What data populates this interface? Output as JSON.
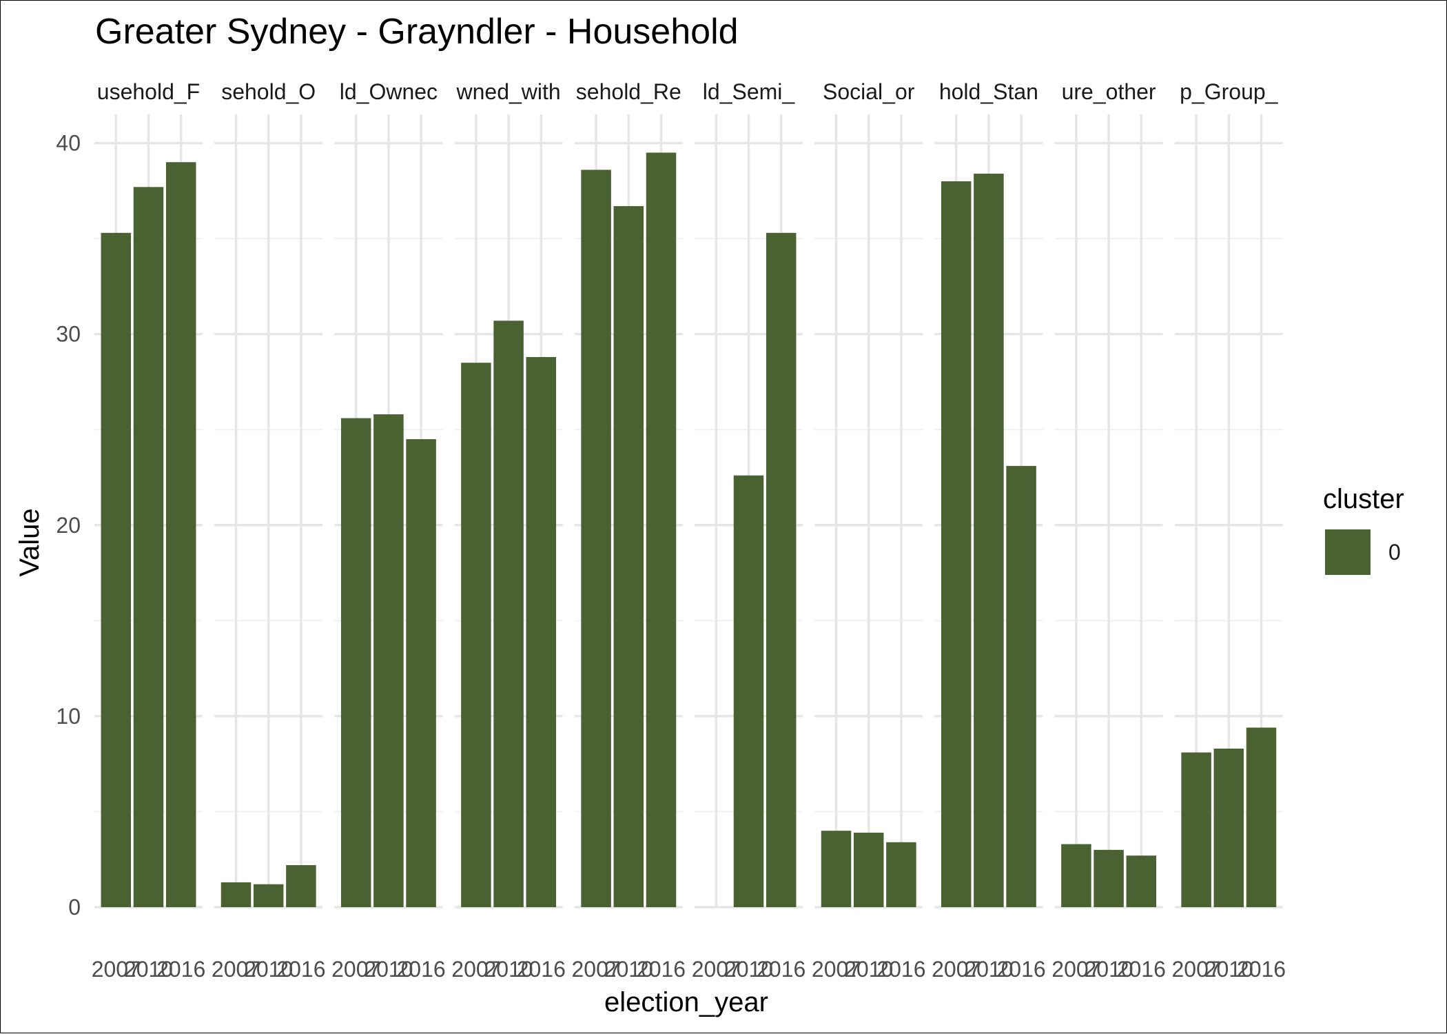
{
  "chart_data": {
    "type": "bar",
    "title": "Greater Sydney - Grayndler - Household",
    "xlabel": "election_year",
    "ylabel": "Value",
    "ylim": [
      0,
      41.5
    ],
    "yticks": [
      0,
      10,
      20,
      30,
      40
    ],
    "categories": [
      "2007",
      "2010",
      "2016"
    ],
    "bar_color": "#4a6132",
    "grid": true,
    "legend": {
      "title": "cluster",
      "position": "right",
      "entries": [
        {
          "label": "0",
          "color": "#4a6132"
        }
      ]
    },
    "facets": [
      {
        "label": "usehold_F",
        "values": [
          35.3,
          37.7,
          39.0
        ]
      },
      {
        "label": "sehold_O",
        "values": [
          1.3,
          1.2,
          2.2
        ]
      },
      {
        "label": "ld_Ownec",
        "values": [
          25.6,
          25.8,
          24.5
        ]
      },
      {
        "label": "wned_with",
        "values": [
          28.5,
          30.7,
          28.8
        ]
      },
      {
        "label": "sehold_Re",
        "values": [
          38.6,
          36.7,
          39.5
        ]
      },
      {
        "label": "ld_Semi_",
        "values": [
          null,
          22.6,
          35.3
        ]
      },
      {
        "label": "Social_or",
        "values": [
          4.0,
          3.9,
          3.4
        ]
      },
      {
        "label": "hold_Stan",
        "values": [
          38.0,
          38.4,
          23.1
        ]
      },
      {
        "label": "ure_other",
        "values": [
          3.3,
          3.0,
          2.7
        ]
      },
      {
        "label": "p_Group_",
        "values": [
          8.1,
          8.3,
          9.4
        ]
      }
    ]
  }
}
